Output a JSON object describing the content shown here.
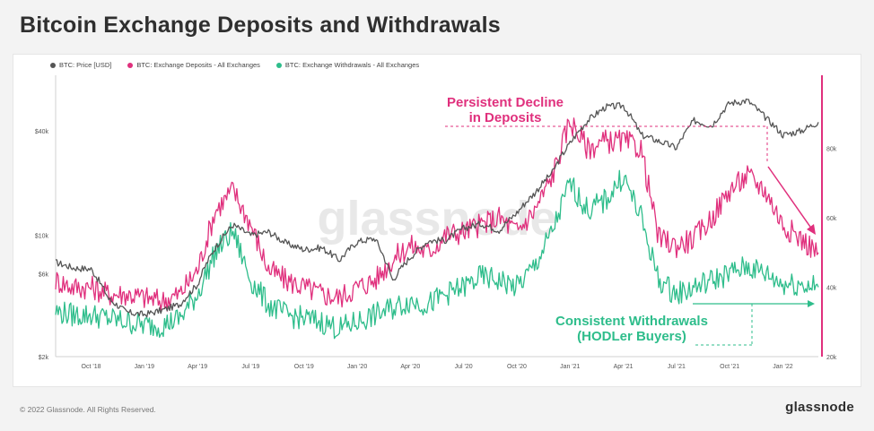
{
  "page": {
    "title": "Bitcoin Exchange Deposits and Withdrawals"
  },
  "watermark": "glassnode",
  "footer": {
    "copyright": "© 2022 Glassnode. All Rights Reserved.",
    "logo": "glassnode"
  },
  "colors": {
    "price": "#555555",
    "deposits": "#e0307d",
    "withdrawals": "#2ebd8b"
  },
  "chart_data": {
    "type": "line",
    "title": "Bitcoin Exchange Deposits and Withdrawals",
    "legend_position": "top-left",
    "grid": false,
    "x_labels": [
      "Oct '18",
      "Jan '19",
      "Apr '19",
      "Jul '19",
      "Oct '19",
      "Jan '20",
      "Apr '20",
      "Jul '20",
      "Oct '20",
      "Jan '21",
      "Apr '21",
      "Jul '21",
      "Oct '21",
      "Jan '22"
    ],
    "x_range": [
      "2018-08",
      "2022-03"
    ],
    "y_left": {
      "label": "",
      "scale": "log",
      "ticks": [
        "$2k",
        "$6k",
        "$10k",
        "$40k"
      ],
      "tick_values": [
        2000,
        6000,
        10000,
        40000
      ],
      "range": [
        2000,
        80000
      ]
    },
    "y_right": {
      "label": "",
      "scale": "linear",
      "ticks": [
        "20k",
        "40k",
        "60k",
        "80k"
      ],
      "tick_values": [
        20000,
        40000,
        60000,
        80000
      ],
      "range": [
        20000,
        100000
      ]
    },
    "series": [
      {
        "name": "BTC: Price [USD]",
        "axis": "left",
        "x": [
          "2018-08",
          "2018-09",
          "2018-10",
          "2018-11",
          "2018-12",
          "2019-01",
          "2019-02",
          "2019-03",
          "2019-04",
          "2019-05",
          "2019-06",
          "2019-07",
          "2019-08",
          "2019-09",
          "2019-10",
          "2019-11",
          "2019-12",
          "2020-01",
          "2020-02",
          "2020-03",
          "2020-04",
          "2020-05",
          "2020-06",
          "2020-07",
          "2020-08",
          "2020-09",
          "2020-10",
          "2020-11",
          "2020-12",
          "2021-01",
          "2021-02",
          "2021-03",
          "2021-04",
          "2021-05",
          "2021-06",
          "2021-07",
          "2021-08",
          "2021-09",
          "2021-10",
          "2021-11",
          "2021-12",
          "2022-01",
          "2022-02",
          "2022-03"
        ],
        "values": [
          7000,
          6500,
          6400,
          4300,
          3600,
          3500,
          3700,
          4000,
          5200,
          8500,
          11500,
          10000,
          10500,
          9000,
          8300,
          8500,
          7200,
          9200,
          9600,
          5500,
          7500,
          9300,
          9400,
          11000,
          11700,
          10700,
          13500,
          17500,
          23000,
          34000,
          46000,
          55000,
          56000,
          38000,
          35000,
          32000,
          46000,
          43000,
          58000,
          60000,
          48000,
          38000,
          40000,
          45000
        ]
      },
      {
        "name": "BTC: Exchange Deposits - All Exchanges",
        "axis": "right",
        "x": [
          "2018-08",
          "2018-09",
          "2018-10",
          "2018-11",
          "2018-12",
          "2019-01",
          "2019-02",
          "2019-03",
          "2019-04",
          "2019-05",
          "2019-06",
          "2019-07",
          "2019-08",
          "2019-09",
          "2019-10",
          "2019-11",
          "2019-12",
          "2020-01",
          "2020-02",
          "2020-03",
          "2020-04",
          "2020-05",
          "2020-06",
          "2020-07",
          "2020-08",
          "2020-09",
          "2020-10",
          "2020-11",
          "2020-12",
          "2021-01",
          "2021-02",
          "2021-03",
          "2021-04",
          "2021-05",
          "2021-06",
          "2021-07",
          "2021-08",
          "2021-09",
          "2021-10",
          "2021-11",
          "2021-12",
          "2022-01",
          "2022-02",
          "2022-03"
        ],
        "values": [
          42000,
          40000,
          40000,
          38000,
          38000,
          37000,
          36000,
          38000,
          45000,
          62000,
          68000,
          58000,
          45000,
          42000,
          40000,
          38000,
          37000,
          40000,
          42000,
          48000,
          52000,
          50000,
          55000,
          56000,
          58000,
          60000,
          56000,
          62000,
          72000,
          88000,
          80000,
          82000,
          82000,
          80000,
          54000,
          52000,
          54000,
          60000,
          68000,
          72000,
          68000,
          58000,
          54000,
          50000
        ]
      },
      {
        "name": "BTC: Exchange Withdrawals - All Exchanges",
        "axis": "right",
        "x": [
          "2018-08",
          "2018-09",
          "2018-10",
          "2018-11",
          "2018-12",
          "2019-01",
          "2019-02",
          "2019-03",
          "2019-04",
          "2019-05",
          "2019-06",
          "2019-07",
          "2019-08",
          "2019-09",
          "2019-10",
          "2019-11",
          "2019-12",
          "2020-01",
          "2020-02",
          "2020-03",
          "2020-04",
          "2020-05",
          "2020-06",
          "2020-07",
          "2020-08",
          "2020-09",
          "2020-10",
          "2020-11",
          "2020-12",
          "2021-01",
          "2021-02",
          "2021-03",
          "2021-04",
          "2021-05",
          "2021-06",
          "2021-07",
          "2021-08",
          "2021-09",
          "2021-10",
          "2021-11",
          "2021-12",
          "2022-01",
          "2022-02",
          "2022-03"
        ],
        "values": [
          33000,
          32000,
          32000,
          31000,
          30000,
          29000,
          29000,
          31000,
          38000,
          50000,
          56000,
          42000,
          35000,
          32000,
          31000,
          30000,
          28000,
          30000,
          32000,
          34000,
          36000,
          35000,
          38000,
          40000,
          43000,
          42000,
          40000,
          46000,
          56000,
          70000,
          62000,
          65000,
          72000,
          60000,
          42000,
          38000,
          40000,
          42000,
          44000,
          46000,
          44000,
          41000,
          41000,
          40000
        ]
      }
    ],
    "annotations": [
      {
        "text_lines": [
          "Persistent Decline",
          "in Deposits"
        ],
        "color": "#e0307d"
      },
      {
        "text_lines": [
          "Consistent Withdrawals",
          "(HODLer Buyers)"
        ],
        "color": "#2ebd8b"
      }
    ]
  }
}
